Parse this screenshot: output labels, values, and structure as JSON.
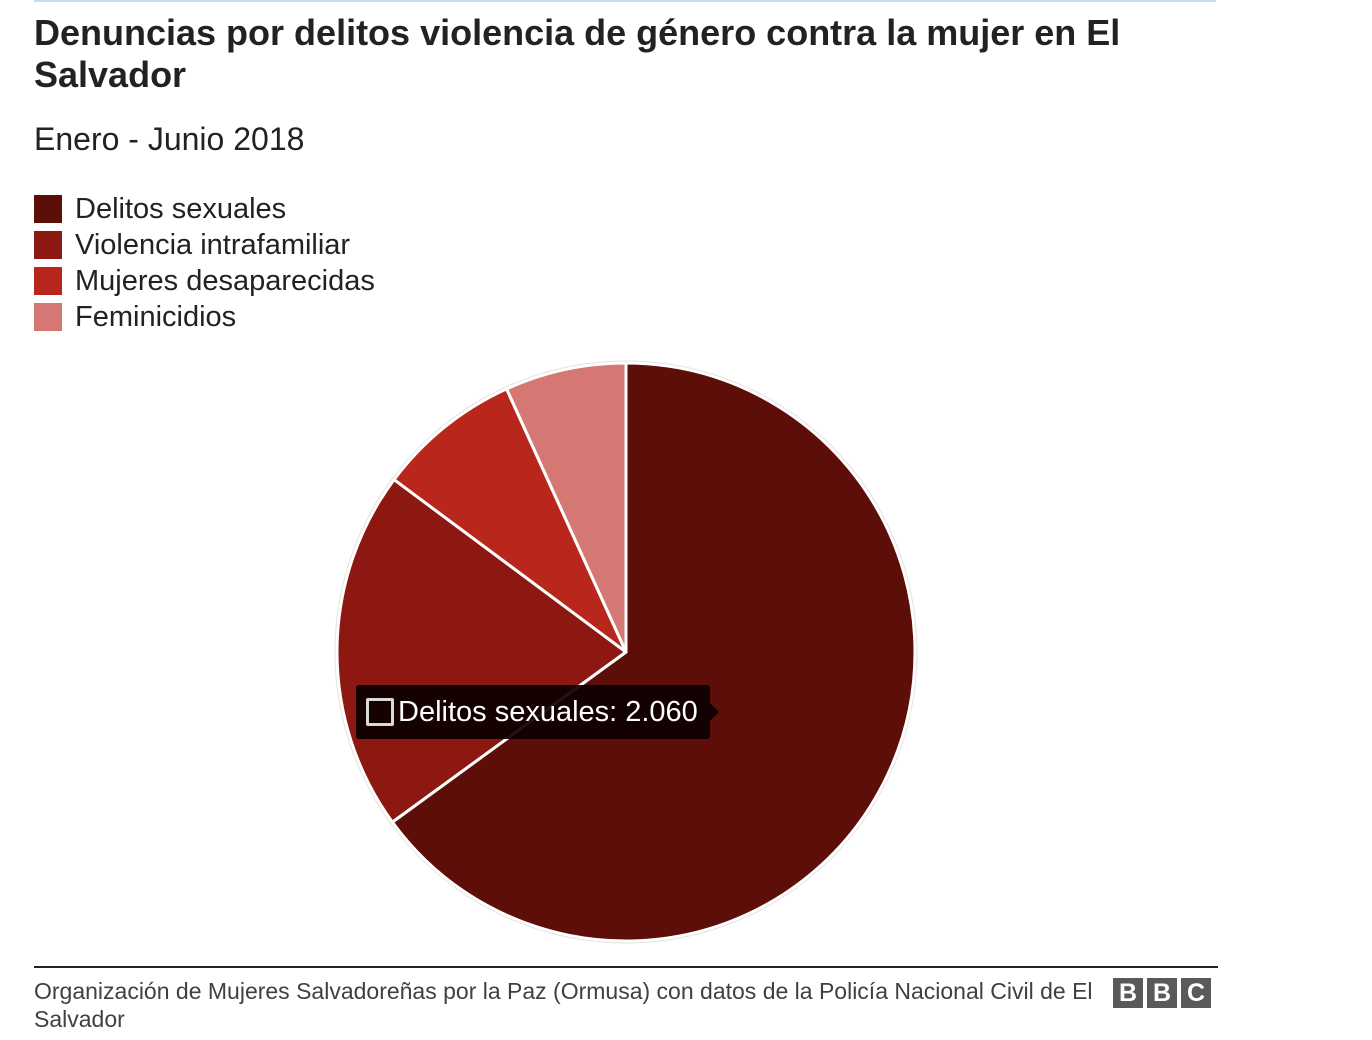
{
  "header": {
    "title": "Denuncias por delitos violencia de género contra la mujer en El Salvador",
    "subtitle": "Enero - Junio 2018"
  },
  "chart_data": {
    "type": "pie",
    "title": "Denuncias por delitos violencia de género contra la mujer en El Salvador",
    "subtitle": "Enero - Junio 2018",
    "legend_position": "top-left",
    "categories": [
      "Delitos sexuales",
      "Violencia intrafamiliar",
      "Mujeres desaparecidas",
      "Feminicidios"
    ],
    "values": [
      2060,
      640,
      255,
      215
    ],
    "colors": [
      "#5e0e08",
      "#8c1811",
      "#b8261c",
      "#d57873"
    ],
    "start_angle_deg": 0,
    "direction": "clockwise",
    "slice_stroke_color": "#ffffff",
    "outline_color": "#e8e0e0"
  },
  "tooltip": {
    "label": "Delitos sexuales",
    "value": "2.060",
    "separator": ":"
  },
  "footer": {
    "source": "Organización de Mujeres Salvadoreñas por la Paz (Ormusa) con datos de la Policía Nacional Civil de El Salvador",
    "logo_letters": [
      "B",
      "B",
      "C"
    ]
  }
}
